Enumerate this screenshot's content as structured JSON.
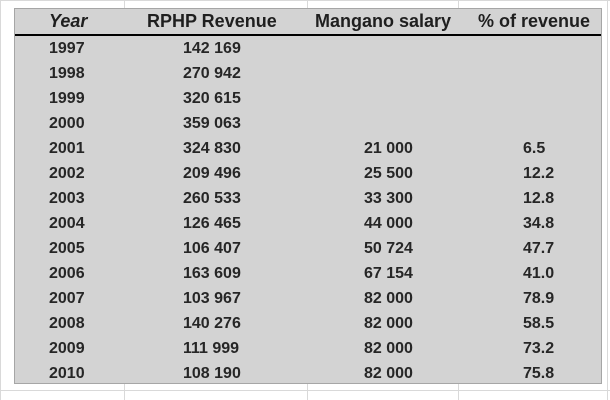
{
  "table": {
    "headers": {
      "year": "Year",
      "revenue": "RPHP Revenue",
      "salary": "Mangano salary",
      "percent": "% of revenue"
    },
    "rows": [
      {
        "year": "1997",
        "revenue": "142 169",
        "salary": "",
        "percent": ""
      },
      {
        "year": "1998",
        "revenue": "270 942",
        "salary": "",
        "percent": ""
      },
      {
        "year": "1999",
        "revenue": "320 615",
        "salary": "",
        "percent": ""
      },
      {
        "year": "2000",
        "revenue": "359 063",
        "salary": "",
        "percent": ""
      },
      {
        "year": "2001",
        "revenue": "324 830",
        "salary": "21 000",
        "percent": "6.5"
      },
      {
        "year": "2002",
        "revenue": "209 496",
        "salary": "25 500",
        "percent": "12.2"
      },
      {
        "year": "2003",
        "revenue": "260 533",
        "salary": "33 300",
        "percent": "12.8"
      },
      {
        "year": "2004",
        "revenue": "126 465",
        "salary": "44 000",
        "percent": "34.8"
      },
      {
        "year": "2005",
        "revenue": "106 407",
        "salary": "50 724",
        "percent": "47.7"
      },
      {
        "year": "2006",
        "revenue": "163 609",
        "salary": "67 154",
        "percent": "41.0"
      },
      {
        "year": "2007",
        "revenue": "103 967",
        "salary": "82 000",
        "percent": "78.9"
      },
      {
        "year": "2008",
        "revenue": "140 276",
        "salary": "82 000",
        "percent": "58.5"
      },
      {
        "year": "2009",
        "revenue": "111 999",
        "salary": "82 000",
        "percent": "73.2"
      },
      {
        "year": "2010",
        "revenue": "108 190",
        "salary": "82 000",
        "percent": "75.8"
      }
    ]
  },
  "colors": {
    "cell_fill": "#d3d3d3",
    "header_rule": "#000000",
    "gridline": "#d9d9d9"
  }
}
